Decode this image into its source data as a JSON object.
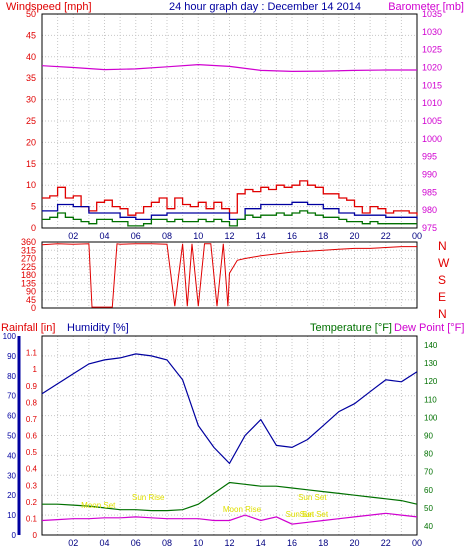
{
  "colors": {
    "red": "#e00000",
    "magenta": "#d000d0",
    "blue": "#0000a0",
    "navy": "#000080",
    "green": "#007000",
    "yellow": "#e0e000",
    "grid": "#c8c8c8",
    "frame": "#000000"
  },
  "chart_data": [
    {
      "type": "line",
      "title": "24 hour graph day : December 14 2014",
      "left_axis_label": "Windspeed [mph]",
      "right_axis_label": "Barometer [mb]",
      "x_tick_labels": [
        "02",
        "04",
        "06",
        "08",
        "10",
        "12",
        "14",
        "16",
        "18",
        "20",
        "22",
        "00"
      ],
      "left_axis": {
        "ylim": [
          0,
          50
        ],
        "ticks": [
          0,
          5,
          10,
          15,
          20,
          25,
          30,
          35,
          40,
          45,
          50
        ]
      },
      "right_axis": {
        "ylim": [
          975,
          1035
        ],
        "ticks": [
          975,
          980,
          985,
          990,
          995,
          1000,
          1005,
          1010,
          1015,
          1020,
          1025,
          1030,
          1035
        ]
      },
      "grid": true,
      "series": [
        {
          "name": "Barometer",
          "axis": "right",
          "color_key": "magenta",
          "x": [
            0,
            2,
            4,
            6,
            8,
            10,
            12,
            14,
            16,
            18,
            20,
            22,
            24
          ],
          "values": [
            1020.5,
            1020,
            1019.4,
            1019.6,
            1020.2,
            1020.8,
            1020.3,
            1019.2,
            1018.9,
            1019,
            1019.2,
            1019.3,
            1019.3
          ]
        },
        {
          "name": "Gust",
          "axis": "left",
          "color_key": "red",
          "x": [
            0,
            0.5,
            1,
            1.5,
            2,
            2.5,
            3,
            3.5,
            4,
            4.5,
            5,
            5.5,
            6,
            6.5,
            7,
            7.5,
            8,
            8.5,
            9,
            9.5,
            10,
            10.5,
            11,
            11.5,
            12,
            12.5,
            13,
            13.5,
            14,
            14.5,
            15,
            15.5,
            16,
            16.5,
            17,
            17.5,
            18,
            18.5,
            19,
            19.5,
            20,
            20.5,
            21,
            21.5,
            22,
            22.5,
            23,
            23.5,
            24
          ],
          "values": [
            7,
            7.5,
            9.5,
            7,
            7.5,
            5,
            4,
            6,
            6.5,
            5,
            4.5,
            3,
            3.5,
            5,
            6,
            7,
            4.5,
            7,
            5.5,
            5,
            6,
            4.5,
            6,
            4.5,
            3.5,
            8,
            9,
            8.5,
            9.5,
            9,
            10,
            9.5,
            10,
            11,
            10,
            9.5,
            8,
            8,
            7,
            6.5,
            5,
            3.5,
            5,
            4.5,
            3.5,
            4,
            4,
            3.5,
            3
          ]
        },
        {
          "name": "Wind",
          "axis": "left",
          "color_key": "blue",
          "x": [
            0,
            1,
            2,
            3,
            4,
            5,
            6,
            7,
            8,
            9,
            10,
            11,
            12,
            13,
            14,
            15,
            16,
            17,
            18,
            19,
            20,
            21,
            22,
            23,
            24
          ],
          "values": [
            4,
            5.5,
            5,
            3.5,
            3.5,
            2.5,
            2,
            3,
            3.5,
            3.5,
            3.5,
            3.5,
            2,
            4.5,
            5.5,
            5.5,
            6,
            5.5,
            4.5,
            3.5,
            3,
            3,
            2.5,
            2.5,
            2
          ]
        },
        {
          "name": "Wind average",
          "axis": "left",
          "color_key": "green",
          "x": [
            0,
            0.5,
            1,
            1.5,
            2,
            2.5,
            3,
            3.5,
            4,
            4.5,
            5,
            5.5,
            6,
            6.5,
            7,
            7.5,
            8,
            8.5,
            9,
            9.5,
            10,
            10.5,
            11,
            11.5,
            12,
            12.5,
            13,
            13.5,
            14,
            14.5,
            15,
            15.5,
            16,
            16.5,
            17,
            17.5,
            18,
            18.5,
            19,
            19.5,
            20,
            20.5,
            21,
            21.5,
            22,
            22.5,
            23,
            23.5,
            24
          ],
          "values": [
            2,
            2.5,
            3.5,
            2.5,
            2,
            1.5,
            1,
            2,
            2,
            1.5,
            1.5,
            0.5,
            0.5,
            1,
            2,
            2,
            1.5,
            2,
            1.5,
            1.5,
            2,
            1.5,
            2,
            1.5,
            0.5,
            2,
            3,
            2.5,
            3,
            3,
            3.5,
            3,
            3.5,
            4,
            3.5,
            3,
            2.5,
            2.5,
            2,
            1.5,
            1.5,
            1,
            1.5,
            1,
            1,
            1,
            1,
            1,
            1
          ]
        }
      ]
    },
    {
      "type": "line",
      "right_axis_label": [
        "N",
        "W",
        "S",
        "E",
        "N"
      ],
      "left_axis": {
        "ylim": [
          0,
          360
        ],
        "ticks": [
          0,
          45,
          90,
          135,
          180,
          225,
          270,
          315,
          360
        ]
      },
      "grid": true,
      "series": [
        {
          "name": "Wind direction",
          "axis": "left",
          "color_key": "red",
          "x": [
            0,
            1,
            2,
            3,
            3.2,
            4,
            4.5,
            4.8,
            5,
            6,
            7,
            8,
            8.5,
            9,
            9.3,
            9.6,
            10,
            10.4,
            10.8,
            11.2,
            11.6,
            11.9,
            12,
            12.5,
            13,
            14,
            15,
            16,
            17,
            18,
            19,
            20,
            21,
            22,
            23,
            24
          ],
          "values": [
            345,
            350,
            348,
            350,
            5,
            5,
            5,
            350,
            348,
            350,
            350,
            348,
            10,
            350,
            10,
            350,
            10,
            350,
            350,
            10,
            350,
            10,
            190,
            260,
            270,
            285,
            295,
            305,
            310,
            315,
            320,
            325,
            325,
            330,
            335,
            335
          ]
        }
      ]
    },
    {
      "type": "line",
      "left_axis_label": "Rainfall [in]",
      "middle_axis_label": "Humidity [%]",
      "right_axis_label": "Temperature [°F]",
      "right_axis_label_2": "Dew Point [°F]",
      "x_tick_labels": [
        "02",
        "04",
        "06",
        "08",
        "10",
        "12",
        "14",
        "16",
        "18",
        "20",
        "22",
        "00"
      ],
      "rain_axis": {
        "ylim": [
          0,
          1.2
        ],
        "ticks": [
          0,
          0.1,
          0.2,
          0.3,
          0.4,
          0.5,
          0.6,
          0.7,
          0.8,
          0.9,
          1,
          1.1
        ]
      },
      "humidity_axis": {
        "ylim": [
          0,
          100
        ],
        "ticks": [
          0,
          10,
          20,
          30,
          40,
          50,
          60,
          70,
          80,
          90,
          100
        ]
      },
      "temperature_axis": {
        "ylim": [
          35,
          145
        ],
        "ticks": [
          40,
          50,
          60,
          70,
          80,
          90,
          100,
          110,
          120,
          130,
          140
        ]
      },
      "annotations": [
        {
          "text": "Sun Rise",
          "x": 6.8
        },
        {
          "text": "Sun Set",
          "x": 17.3
        },
        {
          "text": "Moon Set",
          "x": 3.6
        },
        {
          "text": "Moon Rise",
          "x": 12.8
        },
        {
          "text": "Sun Set",
          "x": 16.5
        },
        {
          "text": "Sun Set",
          "x": 17.4
        }
      ],
      "grid": true,
      "series": [
        {
          "name": "Humidity",
          "axis": "humidity",
          "color_key": "blue",
          "x": [
            0,
            1,
            2,
            3,
            4,
            5,
            6,
            7,
            8,
            9,
            10,
            11,
            12,
            13,
            14,
            15,
            16,
            17,
            18,
            19,
            20,
            21,
            22,
            23,
            24
          ],
          "values": [
            71,
            76,
            81,
            86,
            88,
            89,
            91,
            90,
            88,
            78,
            55,
            44,
            36,
            50,
            58,
            45,
            44,
            48,
            55,
            62,
            66,
            72,
            78,
            77,
            82
          ]
        },
        {
          "name": "Temperature",
          "axis": "temperature",
          "color_key": "green",
          "x": [
            0,
            1,
            2,
            3,
            4,
            5,
            6,
            7,
            8,
            9,
            10,
            11,
            12,
            13,
            14,
            15,
            16,
            17,
            18,
            19,
            20,
            21,
            22,
            23,
            24
          ],
          "values": [
            52,
            52,
            51.5,
            51,
            50,
            49,
            49,
            48.5,
            48.5,
            49,
            52,
            58,
            64,
            63,
            62,
            62,
            61,
            60,
            59,
            58,
            57,
            56,
            55,
            54,
            52
          ]
        },
        {
          "name": "Dew Point",
          "axis": "temperature",
          "color_key": "magenta",
          "x": [
            0,
            1,
            2,
            3,
            4,
            5,
            6,
            7,
            8,
            9,
            10,
            11,
            12,
            13,
            14,
            15,
            16,
            17,
            18,
            19,
            20,
            21,
            22,
            23,
            24
          ],
          "values": [
            43,
            43.5,
            44,
            44,
            44.5,
            44.5,
            45,
            44.5,
            44,
            44,
            44,
            43,
            43,
            46,
            43,
            45,
            41,
            42,
            43,
            44,
            45,
            46,
            47,
            46,
            45
          ]
        }
      ]
    }
  ]
}
